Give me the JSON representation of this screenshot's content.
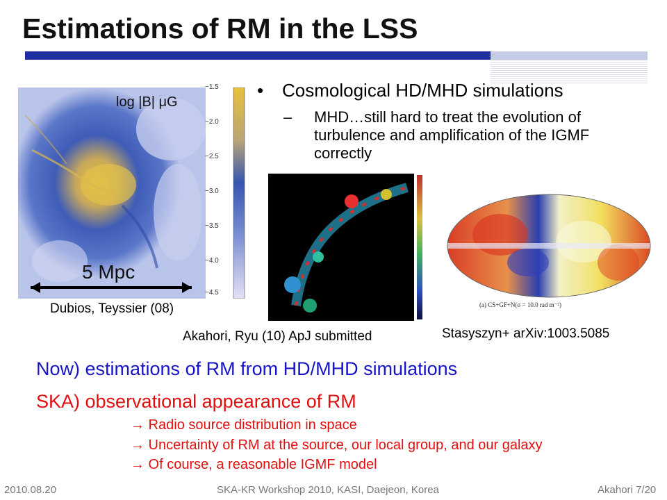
{
  "slide": {
    "title": "Estimations of RM in the LSS",
    "bullet": "Cosmological HD/MHD simulations",
    "sub_bullet": "MHD…still hard to treat the evolution of turbulence and amplification of the IGMF correctly",
    "bullet_symbol": "•",
    "dash_symbol": "–",
    "figure_left": {
      "colorbar_label": "log |B| μG",
      "colorbar_ticks": [
        "−1.5",
        "−2.0",
        "−2.5",
        "−3.0",
        "−3.5",
        "−4.0",
        "−4.5"
      ],
      "scale_label": "5 Mpc",
      "caption": "Dubios, Teyssier (08)"
    },
    "figure_middle": {
      "caption": "Akahori, Ryu (10) ApJ submitted"
    },
    "figure_right": {
      "inner_caption": "(a) CS+GF+N(σ = 10.0 rad m⁻²)",
      "caption": "Stasyszyn+ arXiv:1003.5085"
    },
    "now_line": "Now) estimations of RM from HD/MHD simulations",
    "ska_line": "SKA) observational appearance of RM",
    "arrow_items": [
      "→ Radio source distribution in space",
      "→ Uncertainty of RM at the source, our local group, and our galaxy",
      "→ Of course, a reasonable IGMF model"
    ]
  },
  "footer": {
    "date": "2010.08.20",
    "event": "SKA-KR Workshop 2010, KASI, Daejeon, Korea",
    "page": "Akahori 7/20"
  },
  "colors": {
    "title_bar": "#1f2fa3",
    "blue_text": "#1616c8",
    "red_text": "#e01010"
  }
}
